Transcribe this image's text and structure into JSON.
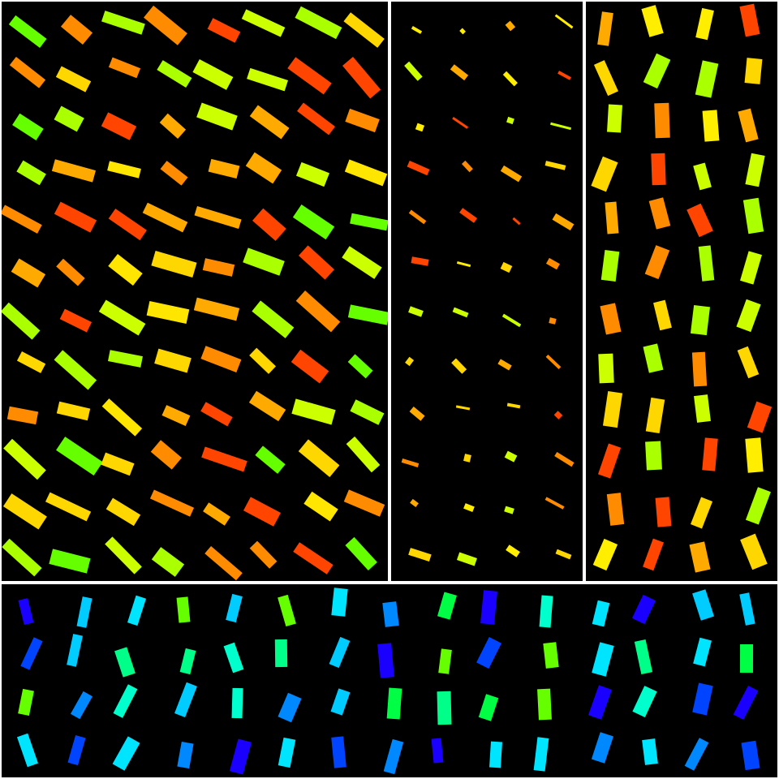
{
  "background": "#000000",
  "separator_color": "#ffffff",
  "panels": [
    {
      "name": "panel-top-left",
      "columns": 8,
      "rows": 12,
      "color_family": "warm",
      "stick_count": 96,
      "colors": [
        "#ffd700",
        "#ffe600",
        "#ff8c00",
        "#ff4500",
        "#ccff00",
        "#66ff00",
        "#aaff00",
        "#ffaa00"
      ]
    },
    {
      "name": "panel-top-middle",
      "columns": 4,
      "rows": 12,
      "color_family": "warm",
      "stick_count": 48,
      "colors": [
        "#ffd700",
        "#ff8c00",
        "#ff4500",
        "#ccff00",
        "#ffee00",
        "#ffaa00"
      ]
    },
    {
      "name": "panel-top-right",
      "columns": 4,
      "rows": 12,
      "color_family": "warm",
      "stick_count": 48,
      "colors": [
        "#ffd700",
        "#ffee00",
        "#ff8c00",
        "#ff4500",
        "#ccff00",
        "#aaff00",
        "#ffaa00"
      ]
    },
    {
      "name": "panel-bottom",
      "columns": 15,
      "rows": 4,
      "color_family": "cool",
      "stick_count": 60,
      "colors": [
        "#00ccff",
        "#00ffcc",
        "#00e5ff",
        "#0088ff",
        "#00ff88",
        "#00ff44",
        "#1a00ff",
        "#0044ff",
        "#66ff00"
      ]
    }
  ]
}
